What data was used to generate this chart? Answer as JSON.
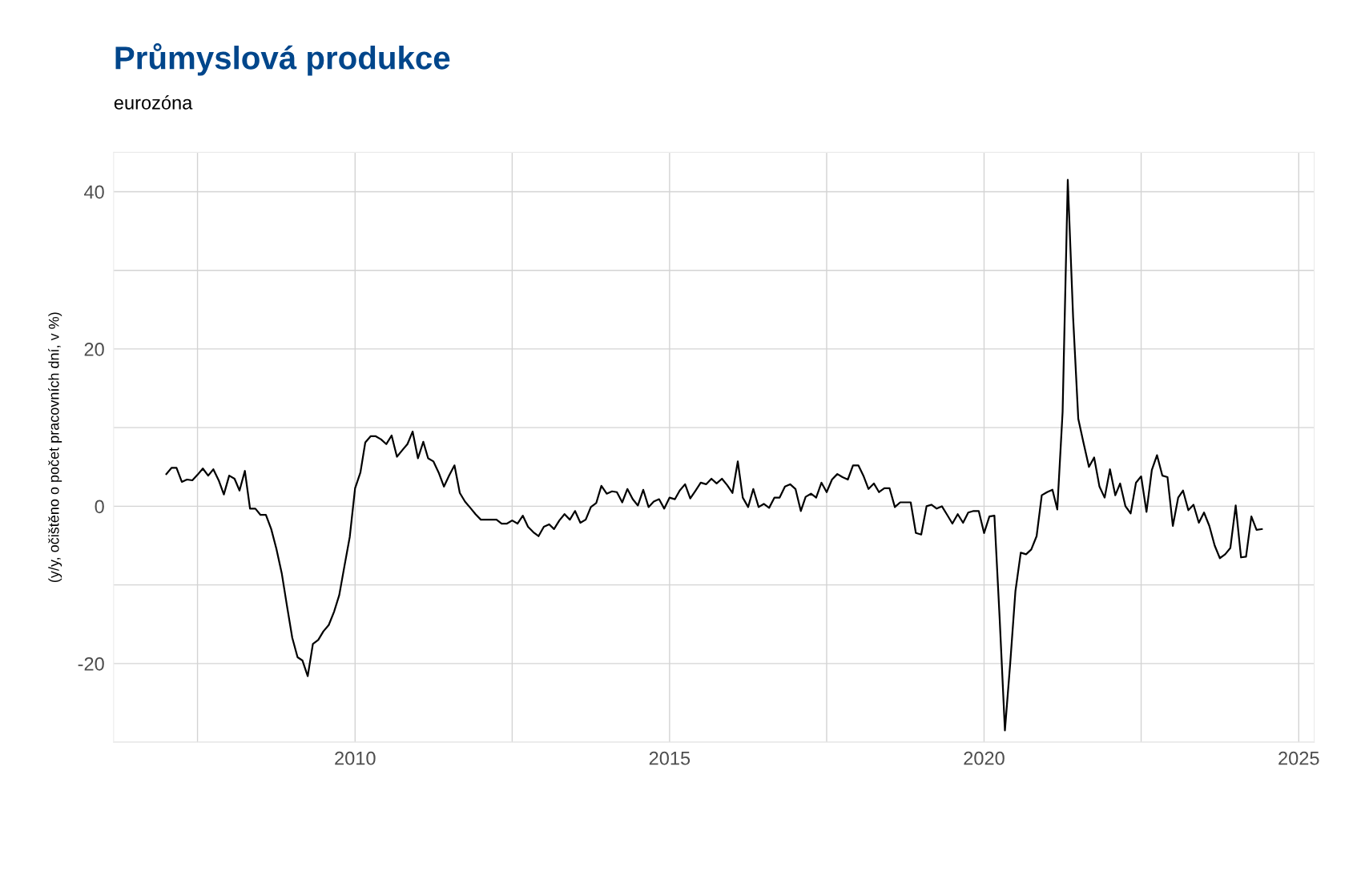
{
  "chart_data": {
    "type": "line",
    "title": "Průmyslová produkce",
    "subtitle": "eurozóna",
    "ylabel": "(y/y, očištěno o počet pracovních dní, v %)",
    "xlim": [
      "2006-03",
      "2025-04"
    ],
    "ylim": [
      -30,
      45
    ],
    "xticks": [
      {
        "value": "2007-07",
        "label": null
      },
      "2010",
      {
        "value": "2012-07",
        "label": null
      },
      "2015",
      {
        "value": "2017-07",
        "label": null
      },
      "2020",
      {
        "value": "2022-07",
        "label": null
      },
      "2025"
    ],
    "yticks": [
      {
        "value": -30,
        "label": null
      },
      -20,
      {
        "value": -10,
        "label": null
      },
      0,
      {
        "value": 10,
        "label": null
      },
      20,
      {
        "value": 30,
        "label": null
      },
      40
    ],
    "grid": true,
    "marker": "none",
    "line_style": "solid",
    "series": [
      {
        "color": "#000000",
        "x": [
          "2007-01",
          "2007-02",
          "2007-03",
          "2007-04",
          "2007-05",
          "2007-06",
          "2007-07",
          "2007-08",
          "2007-09",
          "2007-10",
          "2007-11",
          "2007-12",
          "2008-01",
          "2008-02",
          "2008-03",
          "2008-04",
          "2008-05",
          "2008-06",
          "2008-07",
          "2008-08",
          "2008-09",
          "2008-10",
          "2008-11",
          "2008-12",
          "2009-01",
          "2009-02",
          "2009-03",
          "2009-04",
          "2009-05",
          "2009-06",
          "2009-07",
          "2009-08",
          "2009-09",
          "2009-10",
          "2009-11",
          "2009-12",
          "2010-01",
          "2010-02",
          "2010-03",
          "2010-04",
          "2010-05",
          "2010-06",
          "2010-07",
          "2010-08",
          "2010-09",
          "2010-10",
          "2010-11",
          "2010-12",
          "2011-01",
          "2011-02",
          "2011-03",
          "2011-04",
          "2011-05",
          "2011-06",
          "2011-07",
          "2011-08",
          "2011-09",
          "2011-10",
          "2011-11",
          "2011-12",
          "2012-01",
          "2012-02",
          "2012-03",
          "2012-04",
          "2012-05",
          "2012-06",
          "2012-07",
          "2012-08",
          "2012-09",
          "2012-10",
          "2012-11",
          "2012-12",
          "2013-01",
          "2013-02",
          "2013-03",
          "2013-04",
          "2013-05",
          "2013-06",
          "2013-07",
          "2013-08",
          "2013-09",
          "2013-10",
          "2013-11",
          "2013-12",
          "2014-01",
          "2014-02",
          "2014-03",
          "2014-04",
          "2014-05",
          "2014-06",
          "2014-07",
          "2014-08",
          "2014-09",
          "2014-10",
          "2014-11",
          "2014-12",
          "2015-01",
          "2015-02",
          "2015-03",
          "2015-04",
          "2015-05",
          "2015-06",
          "2015-07",
          "2015-08",
          "2015-09",
          "2015-10",
          "2015-11",
          "2015-12",
          "2016-01",
          "2016-02",
          "2016-03",
          "2016-04",
          "2016-05",
          "2016-06",
          "2016-07",
          "2016-08",
          "2016-09",
          "2016-10",
          "2016-11",
          "2016-12",
          "2017-01",
          "2017-02",
          "2017-03",
          "2017-04",
          "2017-05",
          "2017-06",
          "2017-07",
          "2017-08",
          "2017-09",
          "2017-10",
          "2017-11",
          "2017-12",
          "2018-01",
          "2018-02",
          "2018-03",
          "2018-04",
          "2018-05",
          "2018-06",
          "2018-07",
          "2018-08",
          "2018-09",
          "2018-10",
          "2018-11",
          "2018-12",
          "2019-01",
          "2019-02",
          "2019-03",
          "2019-04",
          "2019-05",
          "2019-06",
          "2019-07",
          "2019-08",
          "2019-09",
          "2019-10",
          "2019-11",
          "2019-12",
          "2020-01",
          "2020-02",
          "2020-03",
          "2020-04",
          "2020-05",
          "2020-06",
          "2020-07",
          "2020-08",
          "2020-09",
          "2020-10",
          "2020-11",
          "2020-12",
          "2021-01",
          "2021-02",
          "2021-03",
          "2021-04",
          "2021-05",
          "2021-06",
          "2021-07",
          "2021-08",
          "2021-09",
          "2021-10",
          "2021-11",
          "2021-12",
          "2022-01",
          "2022-02",
          "2022-03",
          "2022-04",
          "2022-05",
          "2022-06",
          "2022-07",
          "2022-08",
          "2022-09",
          "2022-10",
          "2022-11",
          "2022-12",
          "2023-01",
          "2023-02",
          "2023-03",
          "2023-04",
          "2023-05",
          "2023-06",
          "2023-07",
          "2023-08",
          "2023-09",
          "2023-10",
          "2023-11",
          "2023-12",
          "2024-01",
          "2024-02",
          "2024-03",
          "2024-04",
          "2024-05",
          "2024-06"
        ],
        "values": [
          4.1,
          4.9,
          4.9,
          3.1,
          3.4,
          3.3,
          4.0,
          4.8,
          3.9,
          4.7,
          3.3,
          1.5,
          3.9,
          3.5,
          2.0,
          4.5,
          -0.3,
          -0.3,
          -1.1,
          -1.1,
          -2.9,
          -5.4,
          -8.5,
          -12.6,
          -16.7,
          -19.2,
          -19.6,
          -21.6,
          -17.5,
          -17.0,
          -15.9,
          -15.1,
          -13.4,
          -11.3,
          -7.5,
          -3.9,
          2.3,
          4.3,
          8.1,
          8.9,
          8.9,
          8.5,
          7.9,
          9.0,
          6.3,
          7.1,
          7.9,
          9.5,
          6.1,
          8.2,
          6.1,
          5.7,
          4.3,
          2.5,
          3.9,
          5.2,
          1.7,
          0.6,
          -0.2,
          -1.0,
          -1.7,
          -1.7,
          -1.7,
          -1.7,
          -2.2,
          -2.2,
          -1.8,
          -2.2,
          -1.2,
          -2.6,
          -3.3,
          -3.8,
          -2.6,
          -2.3,
          -2.9,
          -1.8,
          -1.0,
          -1.7,
          -0.6,
          -2.1,
          -1.7,
          -0.1,
          0.4,
          2.6,
          1.6,
          1.9,
          1.8,
          0.5,
          2.2,
          0.9,
          0.1,
          2.1,
          -0.1,
          0.6,
          0.9,
          -0.3,
          1.1,
          0.9,
          2.0,
          2.8,
          1.0,
          2.0,
          3.0,
          2.8,
          3.5,
          2.9,
          3.5,
          2.7,
          1.7,
          5.7,
          1.1,
          -0.1,
          2.2,
          -0.1,
          0.3,
          -0.2,
          1.1,
          1.1,
          2.5,
          2.8,
          2.2,
          -0.6,
          1.2,
          1.6,
          1.1,
          3.0,
          1.8,
          3.4,
          4.1,
          3.7,
          3.4,
          5.2,
          5.2,
          3.8,
          2.2,
          2.9,
          1.8,
          2.3,
          2.3,
          -0.1,
          0.5,
          0.5,
          0.5,
          -3.4,
          -3.6,
          0.0,
          0.2,
          -0.3,
          0.0,
          -1.1,
          -2.2,
          -1.0,
          -2.1,
          -0.8,
          -0.6,
          -0.6,
          -3.4,
          -1.3,
          -1.2,
          -14.5,
          -28.5,
          -19.9,
          -10.8,
          -5.9,
          -6.1,
          -5.5,
          -3.8,
          1.4,
          1.8,
          2.1,
          -0.4,
          12.0,
          41.5,
          24.0,
          11.1,
          8.0,
          5.0,
          6.2,
          2.5,
          1.1,
          4.7,
          1.4,
          2.9,
          0.0,
          -0.9,
          3.0,
          3.8,
          -0.7,
          4.6,
          6.5,
          3.9,
          3.7,
          -2.5,
          1.1,
          2.0,
          -0.5,
          0.2,
          -2.1,
          -0.8,
          -2.5,
          -5.0,
          -6.6,
          -6.1,
          -5.3,
          0.1,
          -6.5,
          -6.4,
          -1.3,
          -3.0,
          -2.9
        ]
      }
    ]
  }
}
